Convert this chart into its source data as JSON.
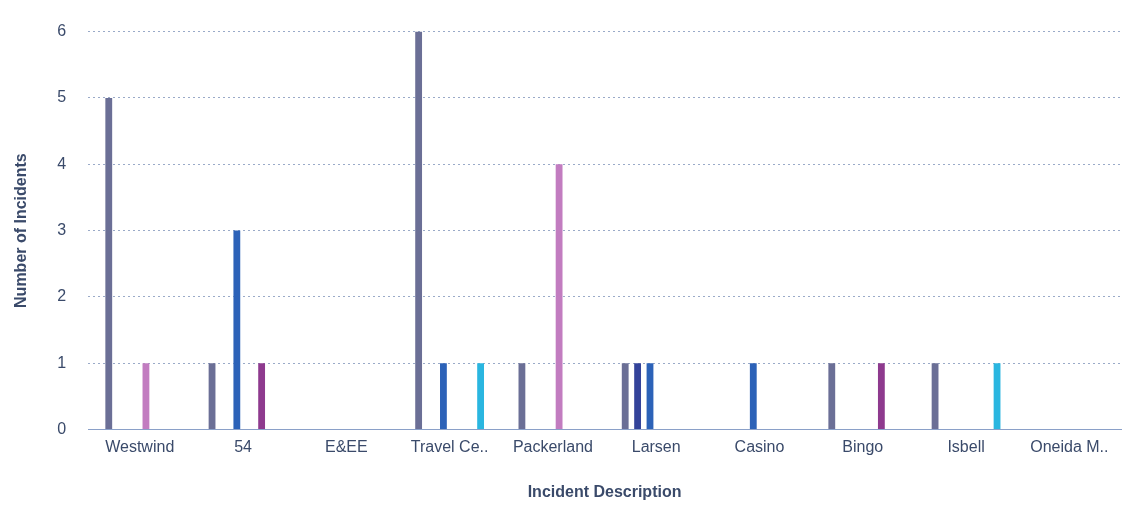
{
  "chart_data": {
    "type": "bar",
    "xlabel": "Incident Description",
    "ylabel": "Number of Incidents",
    "categories": [
      "Westwind",
      "54",
      "E&EE",
      "Travel Ce..",
      "Packerland",
      "Larsen",
      "Casino",
      "Bingo",
      "Isbell",
      "Oneida M.."
    ],
    "series": [
      {
        "color": "#6b6f96",
        "values": [
          5,
          1,
          null,
          6,
          1,
          1,
          null,
          1,
          1,
          null
        ]
      },
      {
        "color": "#33439a",
        "values": [
          null,
          null,
          null,
          null,
          null,
          1,
          null,
          null,
          null,
          null
        ]
      },
      {
        "color": "#2c62b8",
        "values": [
          null,
          3,
          null,
          1,
          null,
          1,
          1,
          null,
          null,
          null
        ]
      },
      {
        "color": "#c27cc0",
        "values": [
          1,
          null,
          null,
          null,
          4,
          null,
          null,
          null,
          null,
          null
        ]
      },
      {
        "color": "#8e3a8e",
        "values": [
          null,
          1,
          null,
          null,
          null,
          null,
          null,
          1,
          null,
          null
        ]
      },
      {
        "color": "#2ab6e0",
        "values": [
          null,
          null,
          null,
          1,
          null,
          null,
          null,
          null,
          1,
          null
        ]
      }
    ],
    "ylim": [
      0,
      6
    ],
    "yticks": [
      0,
      1,
      2,
      3,
      4,
      5,
      6
    ],
    "grid": "y",
    "legend": false
  }
}
